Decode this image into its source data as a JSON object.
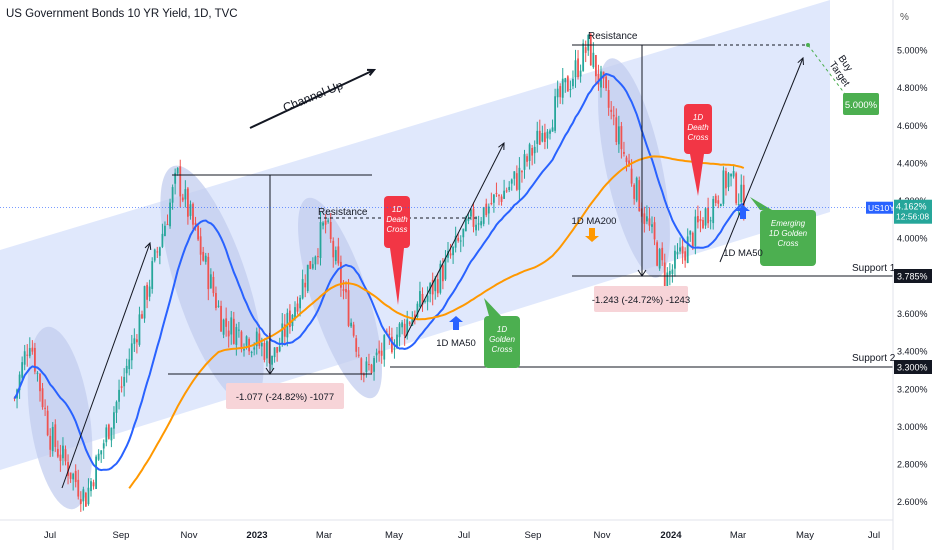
{
  "title": "US Government Bonds 10 YR Yield, 1D, TVC",
  "unit_label": "%",
  "chart_data": {
    "type": "line",
    "yscale": "linear",
    "ylim": [
      2.5,
      5.2
    ],
    "y_ticks": [
      "2.600%",
      "2.800%",
      "3.000%",
      "3.200%",
      "3.400%",
      "3.600%",
      "3.800%",
      "4.000%",
      "4.200%",
      "4.400%",
      "4.600%",
      "4.800%",
      "5.000%"
    ],
    "x_ticks": [
      "Jul",
      "Sep",
      "Nov",
      "2023",
      "Mar",
      "May",
      "Jul",
      "Sep",
      "Nov",
      "2024",
      "Mar",
      "May",
      "Jul"
    ],
    "series": [
      {
        "color": "#26a69a",
        "points": [
          [
            "2022-06",
            3.15
          ],
          [
            "2022-06-14",
            3.48
          ],
          [
            "2022-07-01",
            2.95
          ],
          [
            "2022-08-01",
            2.62
          ],
          [
            "2022-09-01",
            3.2
          ],
          [
            "2022-10-21",
            4.33
          ],
          [
            "2022-12-01",
            3.55
          ],
          [
            "2023-01-18",
            3.38
          ],
          [
            "2023-03-02",
            4.08
          ],
          [
            "2023-04-06",
            3.28
          ],
          [
            "2023-05-31",
            3.7
          ],
          [
            "2023-07-07",
            4.08
          ],
          [
            "2023-08-18",
            4.32
          ],
          [
            "2023-10-19",
            5.02
          ],
          [
            "2023-12-27",
            3.78
          ],
          [
            "2024-02-23",
            4.33
          ],
          [
            "2024-03-08",
            4.162
          ]
        ]
      },
      {
        "name": "1D MA50",
        "color": "#2962ff"
      },
      {
        "name": "1D MA200",
        "color": "#ff9800"
      }
    ],
    "price_tags": [
      {
        "label": "US10Y",
        "value": "4.162%",
        "time": "12:56:08"
      },
      {
        "label": "Support 1",
        "value": "3.785%"
      },
      {
        "label": "Support 2",
        "value": "3.300%"
      }
    ],
    "annotations": {
      "channel": "Channel Up",
      "resistance_1": "Resistance",
      "resistance_2": "Resistance",
      "death_cross_1": "1D\nDeath\nCross",
      "golden_cross_1": "1D\nGolden\nCross",
      "death_cross_2": "1D\nDeath\nCross",
      "emerging_golden": "Emerging\n1D Golden\nCross",
      "ma50_label_1": "1D MA50",
      "ma200_label": "1D MA200",
      "ma50_label_2": "1D MA50",
      "drop_1": "-1.077 (-24.82%) -1077",
      "drop_2": "-1.243 (-24.72%) -1243",
      "buy_target": "Buy\nTarget",
      "target_value": "5.000%",
      "support_1": "Support 1",
      "support_2": "Support 2"
    },
    "colors": {
      "up": "#26a69a",
      "down": "#ef5350",
      "channel": "#dbe4fb",
      "ellipse": "#c3cdef",
      "ma50": "#2962ff",
      "ma200": "#ff9800",
      "red_tag": "#f23645",
      "green_tag": "#4caf50",
      "pink_box": "#f7d4d8"
    }
  }
}
